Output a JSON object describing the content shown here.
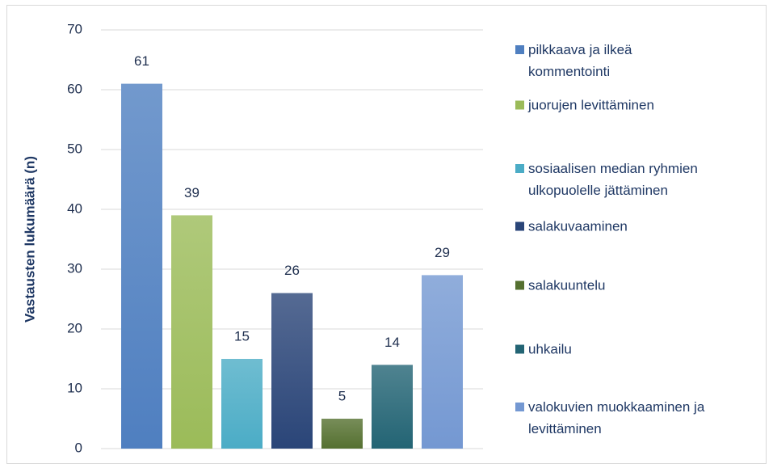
{
  "chart_data": {
    "type": "bar",
    "y_label": "Vastausten lukumäärä (n)",
    "categories": [
      null
    ],
    "series": [
      {
        "name": "pilkkaava ja ilkeä kommentointi",
        "color": "#4f7fc0",
        "values": [
          61
        ]
      },
      {
        "name": "juorujen levittäminen",
        "color": "#9bbb59",
        "values": [
          39
        ]
      },
      {
        "name": "sosiaalisen median ryhmien ulkopuolelle jättäminen",
        "color": "#4bacc6",
        "values": [
          15
        ]
      },
      {
        "name": "salakuvaaminen",
        "color": "#2a4578",
        "values": [
          26
        ]
      },
      {
        "name": "salakuuntelu",
        "color": "#557030",
        "values": [
          5
        ]
      },
      {
        "name": "uhkailu",
        "color": "#236474",
        "values": [
          14
        ]
      },
      {
        "name": "valokuvien muokkaaminen ja levittäminen",
        "color": "#7498d2",
        "values": [
          29
        ]
      }
    ],
    "ylim": [
      0,
      70
    ],
    "yticks": [
      0,
      10,
      20,
      30,
      40,
      50,
      60,
      70
    ],
    "grid": true,
    "legend": "right"
  }
}
